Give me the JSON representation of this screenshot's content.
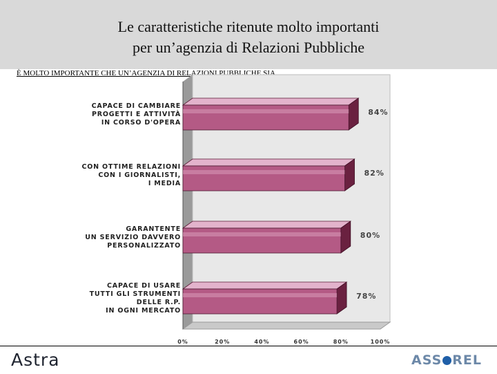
{
  "header": {
    "title_line1": "Le caratteristiche ritenute molto importanti",
    "title_line2": "per un’agenzia di Relazioni Pubbliche"
  },
  "subtitle": "È MOLTO IMPORTANTE CHE UN’AGENZIA DI RELAZIONI PUBBLICHE SIA...",
  "colors": {
    "bar_front": "#b45a85",
    "bar_top": "#e3b3cc",
    "bar_side": "#6a2140",
    "wall": "#e8e8e8",
    "wall_side": "#9a9a9a",
    "floor": "#c9c9c9",
    "title_band": "#d9d9d9"
  },
  "chart_data": {
    "type": "bar",
    "orientation": "horizontal",
    "three_d": true,
    "categories": [
      [
        "CAPACE DI CAMBIARE",
        "PROGETTI E ATTIVITÀ",
        "IN CORSO D'OPERA"
      ],
      [
        "CON OTTIME RELAZIONI",
        "CON I GIORNALISTI,",
        "I MEDIA"
      ],
      [
        "GARANTENTE",
        "UN SERVIZIO DAVVERO",
        "PERSONALIZZATO"
      ],
      [
        "CAPACE DI USARE",
        "TUTTI GLI STRUMENTI",
        "DELLE R.P.",
        "IN OGNI MERCATO"
      ]
    ],
    "values": [
      84,
      82,
      80,
      78
    ],
    "value_labels": [
      "84%",
      "82%",
      "80%",
      "78%"
    ],
    "xlim": [
      0,
      100
    ],
    "xticks": [
      "0%",
      "20%",
      "40%",
      "60%",
      "80%",
      "100%"
    ],
    "grid": false,
    "legend": "none"
  },
  "footer": {
    "logo_left": "Astra",
    "logo_right_before": "ASS",
    "logo_right_after": "REL"
  }
}
